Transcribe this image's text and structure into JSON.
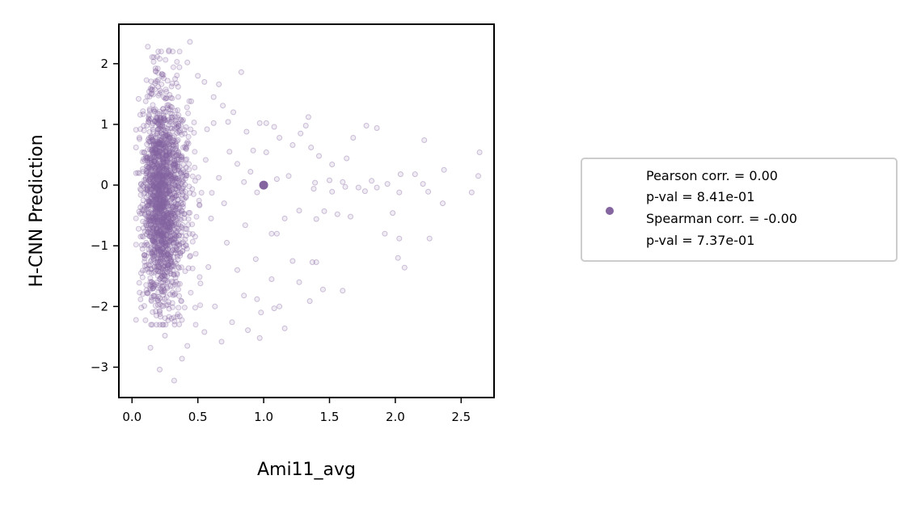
{
  "chart_data": {
    "type": "scatter",
    "title": "",
    "xlabel": "Ami11_avg",
    "ylabel": "H-CNN Prediction",
    "xlim": [
      -0.1,
      2.75
    ],
    "ylim": [
      -3.5,
      2.65
    ],
    "xticks": [
      0.0,
      0.5,
      1.0,
      1.5,
      2.0,
      2.5
    ],
    "xtick_labels": [
      "0.0",
      "0.5",
      "1.0",
      "1.5",
      "2.0",
      "2.5"
    ],
    "yticks": [
      2,
      1,
      0,
      -1,
      -2,
      -3
    ],
    "ytick_labels": [
      "2",
      "1",
      "0",
      "−1",
      "−2",
      "−3"
    ],
    "grid": false,
    "legend_position": "right, outside axes",
    "point_color": "#8465a0",
    "point_alpha": 0.2,
    "marker": "open-circle",
    "summary_point": {
      "x": 1.0,
      "y": 0.0
    },
    "legend_lines": [
      "Pearson corr. = 0.00",
      "p-val = 8.41e-01",
      "Spearman corr. = -0.00",
      "p-val = 7.37e-01"
    ],
    "statistics": {
      "pearson_corr": 0.0,
      "pearson_pval": "8.41e-01",
      "spearman_corr": -0.0,
      "spearman_pval": "7.37e-01"
    },
    "points": [
      {
        "x": 0.12,
        "y": 2.28
      },
      {
        "x": 0.44,
        "y": 2.36
      },
      {
        "x": 0.28,
        "y": 2.22
      },
      {
        "x": 0.21,
        "y": 2.08
      },
      {
        "x": 0.42,
        "y": 2.02
      },
      {
        "x": 0.36,
        "y": 1.94
      },
      {
        "x": 0.5,
        "y": 1.8
      },
      {
        "x": 0.55,
        "y": 1.7
      },
      {
        "x": 0.66,
        "y": 1.66
      },
      {
        "x": 0.83,
        "y": 1.86
      },
      {
        "x": 0.62,
        "y": 1.45
      },
      {
        "x": 0.69,
        "y": 1.31
      },
      {
        "x": 0.77,
        "y": 1.2
      },
      {
        "x": 0.73,
        "y": 1.04
      },
      {
        "x": 0.62,
        "y": 1.02
      },
      {
        "x": 0.97,
        "y": 1.02
      },
      {
        "x": 1.02,
        "y": 1.02
      },
      {
        "x": 0.87,
        "y": 0.88
      },
      {
        "x": 1.08,
        "y": 0.96
      },
      {
        "x": 1.34,
        "y": 1.12
      },
      {
        "x": 1.32,
        "y": 0.98
      },
      {
        "x": 1.12,
        "y": 0.78
      },
      {
        "x": 1.28,
        "y": 0.85
      },
      {
        "x": 1.36,
        "y": 0.62
      },
      {
        "x": 1.22,
        "y": 0.66
      },
      {
        "x": 1.02,
        "y": 0.54
      },
      {
        "x": 0.92,
        "y": 0.57
      },
      {
        "x": 1.42,
        "y": 0.48
      },
      {
        "x": 1.52,
        "y": 0.34
      },
      {
        "x": 1.63,
        "y": 0.44
      },
      {
        "x": 1.68,
        "y": 0.78
      },
      {
        "x": 1.78,
        "y": 0.98
      },
      {
        "x": 1.86,
        "y": 0.94
      },
      {
        "x": 2.22,
        "y": 0.74
      },
      {
        "x": 2.64,
        "y": 0.54
      },
      {
        "x": 2.37,
        "y": 0.25
      },
      {
        "x": 2.63,
        "y": 0.15
      },
      {
        "x": 2.15,
        "y": 0.18
      },
      {
        "x": 2.04,
        "y": 0.18
      },
      {
        "x": 2.21,
        "y": 0.02
      },
      {
        "x": 1.94,
        "y": 0.02
      },
      {
        "x": 1.82,
        "y": 0.07
      },
      {
        "x": 1.6,
        "y": 0.05
      },
      {
        "x": 1.5,
        "y": 0.08
      },
      {
        "x": 1.39,
        "y": 0.04
      },
      {
        "x": 1.19,
        "y": 0.15
      },
      {
        "x": 1.1,
        "y": 0.1
      },
      {
        "x": 1.38,
        "y": -0.06
      },
      {
        "x": 1.52,
        "y": -0.11
      },
      {
        "x": 1.62,
        "y": -0.03
      },
      {
        "x": 1.72,
        "y": -0.04
      },
      {
        "x": 1.77,
        "y": -0.1
      },
      {
        "x": 1.86,
        "y": -0.04
      },
      {
        "x": 2.03,
        "y": -0.12
      },
      {
        "x": 2.25,
        "y": -0.11
      },
      {
        "x": 2.36,
        "y": -0.3
      },
      {
        "x": 2.58,
        "y": -0.12
      },
      {
        "x": 1.98,
        "y": -0.46
      },
      {
        "x": 1.92,
        "y": -0.8
      },
      {
        "x": 2.03,
        "y": -0.88
      },
      {
        "x": 2.26,
        "y": -0.88
      },
      {
        "x": 2.02,
        "y": -1.2
      },
      {
        "x": 2.07,
        "y": -1.36
      },
      {
        "x": 1.46,
        "y": -0.43
      },
      {
        "x": 1.56,
        "y": -0.48
      },
      {
        "x": 1.66,
        "y": -0.52
      },
      {
        "x": 1.4,
        "y": -0.56
      },
      {
        "x": 1.27,
        "y": -0.42
      },
      {
        "x": 1.16,
        "y": -0.55
      },
      {
        "x": 1.06,
        "y": -0.8
      },
      {
        "x": 1.1,
        "y": -0.8
      },
      {
        "x": 1.22,
        "y": -1.25
      },
      {
        "x": 1.37,
        "y": -1.27
      },
      {
        "x": 1.4,
        "y": -1.27
      },
      {
        "x": 1.27,
        "y": -1.6
      },
      {
        "x": 1.06,
        "y": -1.55
      },
      {
        "x": 1.45,
        "y": -1.72
      },
      {
        "x": 1.6,
        "y": -1.74
      },
      {
        "x": 1.35,
        "y": -1.91
      },
      {
        "x": 1.12,
        "y": -2.0
      },
      {
        "x": 1.08,
        "y": -2.03
      },
      {
        "x": 0.98,
        "y": -2.1
      },
      {
        "x": 0.95,
        "y": -1.88
      },
      {
        "x": 0.85,
        "y": -1.82
      },
      {
        "x": 0.76,
        "y": -2.26
      },
      {
        "x": 0.88,
        "y": -2.39
      },
      {
        "x": 0.97,
        "y": -2.52
      },
      {
        "x": 1.16,
        "y": -2.36
      },
      {
        "x": 0.68,
        "y": -2.58
      },
      {
        "x": 0.55,
        "y": -2.42
      },
      {
        "x": 0.38,
        "y": -2.86
      },
      {
        "x": 0.32,
        "y": -3.22
      },
      {
        "x": 0.21,
        "y": -3.04
      },
      {
        "x": 0.14,
        "y": -2.68
      },
      {
        "x": 0.42,
        "y": -2.65
      },
      {
        "x": 0.63,
        "y": -2.0
      },
      {
        "x": 0.58,
        "y": -1.35
      },
      {
        "x": 0.72,
        "y": -0.95
      },
      {
        "x": 0.86,
        "y": -0.66
      },
      {
        "x": 0.94,
        "y": -1.22
      },
      {
        "x": 0.8,
        "y": -1.4
      },
      {
        "x": 0.07,
        "y": -2.02
      },
      {
        "x": 0.05,
        "y": 1.42
      },
      {
        "x": 0.03,
        "y": 0.62
      },
      {
        "x": 0.05,
        "y": -0.72
      },
      {
        "x": 0.08,
        "y": -1.52
      },
      {
        "x": 0.9,
        "y": 0.22
      },
      {
        "x": 0.8,
        "y": 0.35
      },
      {
        "x": 0.74,
        "y": 0.55
      },
      {
        "x": 0.66,
        "y": 0.12
      },
      {
        "x": 0.7,
        "y": -0.3
      },
      {
        "x": 0.6,
        "y": -0.55
      },
      {
        "x": 0.95,
        "y": -0.12
      },
      {
        "x": 0.85,
        "y": 0.05
      },
      {
        "x": 0.35,
        "y": 1.62
      },
      {
        "x": 0.45,
        "y": 1.38
      },
      {
        "x": 0.3,
        "y": -2.2
      },
      {
        "x": 0.48,
        "y": -2.02
      },
      {
        "x": 0.25,
        "y": -2.48
      },
      {
        "x": 0.18,
        "y": 1.88
      },
      {
        "x": 0.27,
        "y": 1.72
      },
      {
        "x": 0.52,
        "y": -1.62
      },
      {
        "x": 0.57,
        "y": 0.92
      },
      {
        "x": 0.4,
        "y": 0.85
      },
      {
        "x": 0.48,
        "y": -0.85
      },
      {
        "x": 0.33,
        "y": -1.12
      }
    ],
    "cluster": {
      "x_range": [
        0.03,
        0.62
      ],
      "y_range": [
        -2.3,
        2.2
      ],
      "count": 1800
    }
  }
}
